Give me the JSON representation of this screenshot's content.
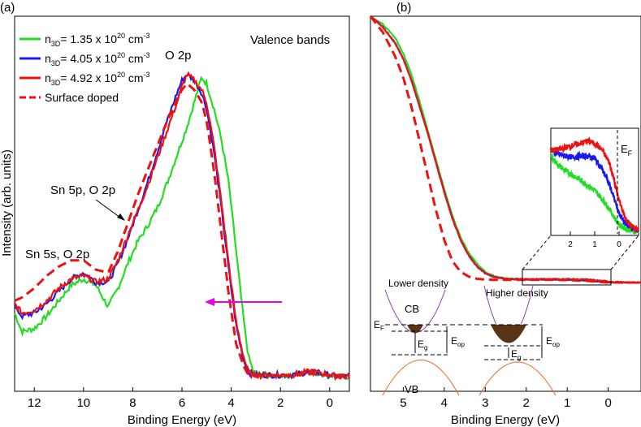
{
  "chart_data": [
    {
      "type": "line",
      "panel_label": "(a)",
      "title": "",
      "xlabel": "Binding Energy (eV)",
      "ylabel": "Intensity (arb. units)",
      "xlim": [
        12.8,
        -0.8
      ],
      "x_reversed": true,
      "xticks": [
        "12",
        "10",
        "8",
        "6",
        "4",
        "2",
        "0"
      ],
      "legend_placement": "top-left",
      "inset_label": "Valence bands",
      "annotations": [
        "O 2p",
        "Sn 5p, O 2p",
        "Sn 5s, O 2p"
      ],
      "arrow_color": "#e800e8",
      "series": [
        {
          "name": "n3D=1.35 x 10^20 cm^-3",
          "legend_main": "n",
          "legend_sub": "3D",
          "legend_text": "= 1.35 x 10",
          "legend_exp": "20",
          "legend_unit": " cm",
          "legend_unit_exp": "-3",
          "color": "#22dd22",
          "dash": false,
          "x": [
            12.8,
            12.5,
            12.0,
            11.5,
            11.0,
            10.5,
            10.0,
            9.5,
            9.0,
            8.6,
            8.2,
            7.8,
            7.4,
            7.0,
            6.6,
            6.2,
            5.8,
            5.5,
            5.2,
            5.0,
            4.7,
            4.4,
            4.1,
            3.8,
            3.5,
            3.3,
            3.1,
            2.8,
            2.4,
            2.0,
            1.6,
            1.2,
            0.8,
            0.4,
            0.0,
            -0.4,
            -0.8
          ],
          "y": [
            0.2,
            0.14,
            0.15,
            0.19,
            0.24,
            0.29,
            0.31,
            0.29,
            0.22,
            0.28,
            0.36,
            0.43,
            0.48,
            0.54,
            0.62,
            0.71,
            0.8,
            0.88,
            0.96,
            0.94,
            0.86,
            0.76,
            0.62,
            0.4,
            0.18,
            0.06,
            0.01,
            0.0,
            0.0,
            0.0,
            -0.005,
            0.005,
            0.01,
            0.005,
            0.0,
            -0.005,
            -0.005
          ]
        },
        {
          "name": "n3D=4.05 x 10^20 cm^-3",
          "legend_main": "n",
          "legend_sub": "3D",
          "legend_text": "= 4.05 x 10",
          "legend_exp": "20",
          "legend_unit": " cm",
          "legend_unit_exp": "-3",
          "color": "#1a1aee",
          "dash": false,
          "x": [
            12.8,
            12.5,
            12.0,
            11.5,
            11.0,
            10.5,
            10.0,
            9.5,
            9.0,
            8.6,
            8.2,
            7.8,
            7.4,
            7.0,
            6.6,
            6.2,
            6.0,
            5.8,
            5.5,
            5.2,
            5.0,
            4.7,
            4.4,
            4.1,
            3.8,
            3.5,
            3.3,
            3.1,
            2.8,
            2.4,
            2.0,
            1.6,
            1.2,
            0.8,
            0.4,
            0.0,
            -0.4,
            -0.8
          ],
          "y": [
            0.22,
            0.19,
            0.2,
            0.23,
            0.27,
            0.31,
            0.33,
            0.3,
            0.3,
            0.36,
            0.44,
            0.53,
            0.62,
            0.72,
            0.82,
            0.91,
            0.95,
            0.97,
            0.95,
            0.91,
            0.86,
            0.72,
            0.54,
            0.34,
            0.16,
            0.05,
            0.01,
            0.0,
            0.0,
            0.0,
            0.0,
            0.0,
            0.005,
            0.01,
            0.005,
            0.0,
            -0.005,
            -0.005
          ]
        },
        {
          "name": "n3D=4.92 x 10^20 cm^-3",
          "legend_main": "n",
          "legend_sub": "3D",
          "legend_text": "= 4.92 x 10",
          "legend_exp": "20",
          "legend_unit": " cm",
          "legend_unit_exp": "-3",
          "color": "#ee1111",
          "dash": false,
          "x": [
            12.8,
            12.5,
            12.0,
            11.5,
            11.0,
            10.5,
            10.0,
            9.5,
            9.0,
            8.6,
            8.2,
            7.8,
            7.4,
            7.0,
            6.6,
            6.2,
            6.0,
            5.8,
            5.5,
            5.2,
            5.0,
            4.7,
            4.4,
            4.1,
            3.8,
            3.5,
            3.3,
            3.1,
            2.8,
            2.4,
            2.0,
            1.6,
            1.2,
            0.8,
            0.4,
            0.0,
            -0.4,
            -0.8
          ],
          "y": [
            0.23,
            0.2,
            0.21,
            0.24,
            0.28,
            0.31,
            0.32,
            0.3,
            0.31,
            0.37,
            0.45,
            0.53,
            0.61,
            0.7,
            0.79,
            0.88,
            0.93,
            0.97,
            0.95,
            0.92,
            0.88,
            0.74,
            0.56,
            0.36,
            0.17,
            0.06,
            0.01,
            0.0,
            0.0,
            0.0,
            0.0,
            0.0,
            0.005,
            0.012,
            0.008,
            0.0,
            -0.005,
            -0.005
          ]
        },
        {
          "name": "Surface doped",
          "legend_main": "Surface doped",
          "legend_sub": "",
          "legend_text": "",
          "legend_exp": "",
          "legend_unit": "",
          "legend_unit_exp": "",
          "color": "#ee1111",
          "dash": true,
          "x": [
            12.8,
            12.5,
            12.0,
            11.5,
            11.0,
            10.5,
            10.0,
            9.5,
            9.0,
            8.6,
            8.2,
            7.8,
            7.4,
            7.0,
            6.6,
            6.2,
            6.0,
            5.8,
            5.5,
            5.2,
            5.0,
            4.7,
            4.4,
            4.1,
            3.8,
            3.5,
            3.3,
            3.1,
            2.8,
            2.4,
            2.0,
            1.6,
            1.2,
            0.8,
            0.4,
            0.0,
            -0.4,
            -0.8
          ],
          "y": [
            0.24,
            0.25,
            0.28,
            0.32,
            0.35,
            0.37,
            0.37,
            0.34,
            0.33,
            0.4,
            0.49,
            0.58,
            0.66,
            0.74,
            0.82,
            0.89,
            0.92,
            0.94,
            0.92,
            0.88,
            0.82,
            0.66,
            0.46,
            0.26,
            0.1,
            0.03,
            0.0,
            0.0,
            0.0,
            0.0,
            0.0,
            0.0,
            0.0,
            0.005,
            0.0,
            0.0,
            0.0,
            0.0
          ]
        }
      ]
    },
    {
      "type": "line",
      "panel_label": "(b)",
      "title": "",
      "xlabel": "Binding Energy (eV)",
      "ylabel": "",
      "xlim": [
        5.8,
        -0.8
      ],
      "x_reversed": true,
      "xticks": [
        "5",
        "4",
        "3",
        "2",
        "1",
        "0"
      ],
      "series": [
        {
          "color": "#22dd22",
          "dash": false,
          "x": [
            5.8,
            5.5,
            5.2,
            5.0,
            4.8,
            4.6,
            4.4,
            4.2,
            4.0,
            3.8,
            3.6,
            3.4,
            3.2,
            3.0,
            2.8,
            2.6,
            2.4,
            2.0,
            1.5,
            1.0,
            0.5,
            0.0,
            -0.4,
            -0.8
          ],
          "y": [
            1.0,
            0.97,
            0.92,
            0.86,
            0.78,
            0.68,
            0.57,
            0.46,
            0.35,
            0.25,
            0.17,
            0.11,
            0.07,
            0.04,
            0.025,
            0.018,
            0.014,
            0.012,
            0.012,
            0.01,
            0.006,
            0.0,
            0.0,
            0.0
          ]
        },
        {
          "color": "#1a1aee",
          "dash": false,
          "x": [
            5.8,
            5.5,
            5.2,
            5.0,
            4.8,
            4.6,
            4.4,
            4.2,
            4.0,
            3.8,
            3.6,
            3.4,
            3.2,
            3.0,
            2.8,
            2.6,
            2.4,
            2.0,
            1.5,
            1.0,
            0.5,
            0.0,
            -0.4,
            -0.8
          ],
          "y": [
            1.0,
            0.96,
            0.9,
            0.84,
            0.76,
            0.66,
            0.56,
            0.45,
            0.34,
            0.24,
            0.16,
            0.1,
            0.06,
            0.035,
            0.022,
            0.016,
            0.013,
            0.012,
            0.012,
            0.011,
            0.008,
            0.002,
            0.0,
            0.0
          ]
        },
        {
          "color": "#ee1111",
          "dash": false,
          "x": [
            5.8,
            5.5,
            5.2,
            5.0,
            4.8,
            4.6,
            4.4,
            4.2,
            4.0,
            3.8,
            3.6,
            3.4,
            3.2,
            3.0,
            2.8,
            2.6,
            2.4,
            2.0,
            1.5,
            1.0,
            0.5,
            0.0,
            -0.4,
            -0.8
          ],
          "y": [
            1.0,
            0.96,
            0.9,
            0.84,
            0.76,
            0.66,
            0.56,
            0.45,
            0.34,
            0.24,
            0.16,
            0.1,
            0.06,
            0.034,
            0.022,
            0.016,
            0.013,
            0.012,
            0.013,
            0.013,
            0.011,
            0.004,
            0.0,
            0.0
          ]
        },
        {
          "color": "#ee1111",
          "dash": true,
          "x": [
            5.8,
            5.5,
            5.2,
            5.0,
            4.8,
            4.6,
            4.4,
            4.2,
            4.0,
            3.8,
            3.6,
            3.4,
            3.2,
            3.0,
            2.8,
            2.6,
            2.4,
            2.0,
            1.5,
            1.0,
            0.5,
            0.0,
            -0.4,
            -0.8
          ],
          "y": [
            1.0,
            0.94,
            0.85,
            0.77,
            0.66,
            0.53,
            0.4,
            0.27,
            0.16,
            0.08,
            0.04,
            0.022,
            0.014,
            0.011,
            0.01,
            0.01,
            0.01,
            0.01,
            0.01,
            0.009,
            0.006,
            0.0,
            0.0,
            0.0
          ]
        }
      ],
      "inset": {
        "xlim": [
          2.8,
          -0.8
        ],
        "xticks": [
          "2",
          "1",
          "0"
        ],
        "label": "E",
        "label_sub": "F",
        "series": [
          {
            "color": "#22dd22",
            "x": [
              2.8,
              2.5,
              2.2,
              1.9,
              1.6,
              1.3,
              1.0,
              0.7,
              0.4,
              0.2,
              0.0,
              -0.3,
              -0.6,
              -0.8
            ],
            "y": [
              0.74,
              0.66,
              0.6,
              0.56,
              0.52,
              0.47,
              0.42,
              0.34,
              0.25,
              0.17,
              0.1,
              0.06,
              0.04,
              0.04
            ]
          },
          {
            "color": "#1a1aee",
            "x": [
              2.8,
              2.5,
              2.2,
              1.9,
              1.6,
              1.3,
              1.0,
              0.7,
              0.4,
              0.2,
              0.0,
              -0.3,
              -0.6,
              -0.8
            ],
            "y": [
              0.8,
              0.76,
              0.74,
              0.73,
              0.74,
              0.74,
              0.72,
              0.62,
              0.48,
              0.34,
              0.2,
              0.1,
              0.06,
              0.05
            ]
          },
          {
            "color": "#ee1111",
            "x": [
              2.8,
              2.5,
              2.2,
              1.9,
              1.6,
              1.3,
              1.0,
              0.7,
              0.4,
              0.2,
              0.0,
              -0.3,
              -0.6,
              -0.8
            ],
            "y": [
              0.8,
              0.8,
              0.82,
              0.84,
              0.86,
              0.88,
              0.86,
              0.8,
              0.68,
              0.52,
              0.32,
              0.14,
              0.07,
              0.06
            ]
          }
        ]
      },
      "diagram": {
        "left_title": "Lower density",
        "right_title": "Higher density",
        "cb_label": "CB",
        "vb_label": "VB",
        "ef_label": "E",
        "ef_sub": "F",
        "eg_label": "E",
        "eg_sub": "g",
        "eop_label": "E",
        "eop_sub": "op",
        "cb_color": "#8a3fa8",
        "vb_color": "#e86a2a",
        "fill_color": "#5a3414"
      }
    }
  ]
}
